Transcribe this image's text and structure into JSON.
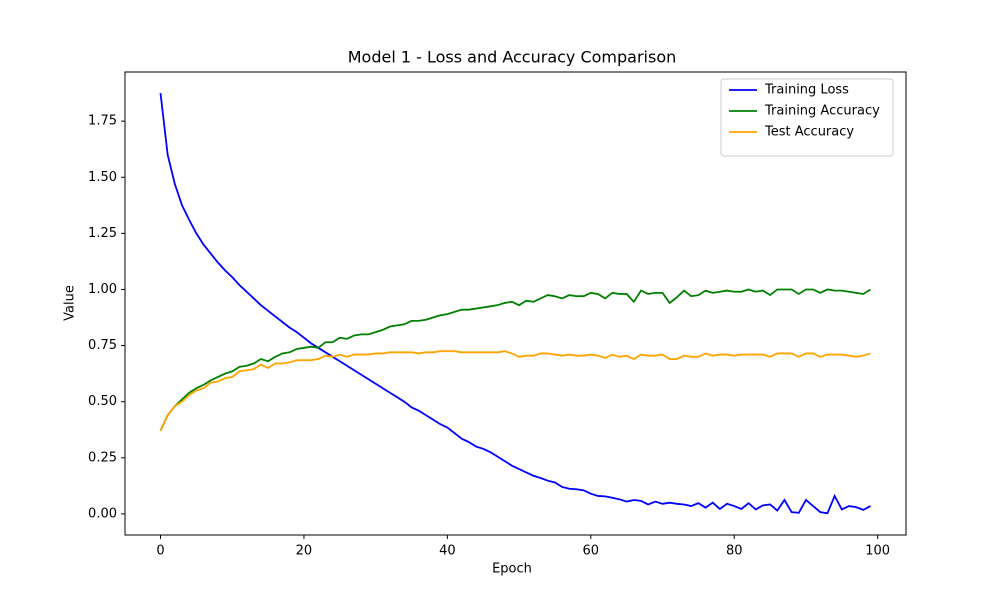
{
  "chart_data": {
    "type": "line",
    "title": "Model 1 - Loss and Accuracy Comparison",
    "x_label": "Epoch",
    "y_label": "Value",
    "x": [
      0,
      1,
      2,
      3,
      4,
      5,
      6,
      7,
      8,
      9,
      10,
      11,
      12,
      13,
      14,
      15,
      16,
      17,
      18,
      19,
      20,
      21,
      22,
      23,
      24,
      25,
      26,
      27,
      28,
      29,
      30,
      31,
      32,
      33,
      34,
      35,
      36,
      37,
      38,
      39,
      40,
      41,
      42,
      43,
      44,
      45,
      46,
      47,
      48,
      49,
      50,
      51,
      52,
      53,
      54,
      55,
      56,
      57,
      58,
      59,
      60,
      61,
      62,
      63,
      64,
      65,
      66,
      67,
      68,
      69,
      70,
      71,
      72,
      73,
      74,
      75,
      76,
      77,
      78,
      79,
      80,
      81,
      82,
      83,
      84,
      85,
      86,
      87,
      88,
      89,
      90,
      91,
      92,
      93,
      94,
      95,
      96,
      97,
      98,
      99
    ],
    "series": [
      {
        "name": "Training Loss",
        "color": "#0000ff",
        "values": [
          1.875,
          1.6,
          1.47,
          1.375,
          1.31,
          1.25,
          1.2,
          1.16,
          1.12,
          1.085,
          1.055,
          1.02,
          0.99,
          0.96,
          0.93,
          0.905,
          0.88,
          0.855,
          0.83,
          0.81,
          0.785,
          0.76,
          0.74,
          0.72,
          0.7,
          0.68,
          0.66,
          0.64,
          0.62,
          0.6,
          0.58,
          0.56,
          0.54,
          0.52,
          0.5,
          0.475,
          0.46,
          0.44,
          0.42,
          0.4,
          0.385,
          0.36,
          0.335,
          0.32,
          0.3,
          0.29,
          0.275,
          0.255,
          0.235,
          0.215,
          0.2,
          0.185,
          0.17,
          0.16,
          0.148,
          0.14,
          0.12,
          0.112,
          0.11,
          0.105,
          0.09,
          0.08,
          0.078,
          0.072,
          0.065,
          0.055,
          0.062,
          0.058,
          0.042,
          0.055,
          0.045,
          0.05,
          0.045,
          0.042,
          0.035,
          0.048,
          0.028,
          0.05,
          0.022,
          0.045,
          0.035,
          0.022,
          0.048,
          0.02,
          0.038,
          0.042,
          0.015,
          0.062,
          0.008,
          0.005,
          0.062,
          0.035,
          0.008,
          0.003,
          0.08,
          0.02,
          0.035,
          0.03,
          0.018,
          0.035
        ]
      },
      {
        "name": "Training Accuracy",
        "color": "#008000",
        "values": [
          0.37,
          0.44,
          0.48,
          0.51,
          0.54,
          0.56,
          0.575,
          0.595,
          0.61,
          0.625,
          0.635,
          0.655,
          0.66,
          0.67,
          0.69,
          0.68,
          0.7,
          0.715,
          0.72,
          0.735,
          0.74,
          0.745,
          0.74,
          0.765,
          0.765,
          0.785,
          0.78,
          0.795,
          0.8,
          0.8,
          0.81,
          0.82,
          0.835,
          0.84,
          0.845,
          0.86,
          0.86,
          0.865,
          0.875,
          0.885,
          0.89,
          0.9,
          0.91,
          0.91,
          0.915,
          0.92,
          0.925,
          0.93,
          0.94,
          0.945,
          0.93,
          0.95,
          0.945,
          0.96,
          0.975,
          0.97,
          0.96,
          0.975,
          0.97,
          0.97,
          0.985,
          0.98,
          0.96,
          0.985,
          0.98,
          0.98,
          0.945,
          0.995,
          0.98,
          0.985,
          0.985,
          0.94,
          0.965,
          0.995,
          0.97,
          0.975,
          0.995,
          0.985,
          0.99,
          0.995,
          0.99,
          0.99,
          1.0,
          0.99,
          0.995,
          0.975,
          1.0,
          1.0,
          1.0,
          0.98,
          1.0,
          1.0,
          0.985,
          1.0,
          0.995,
          0.995,
          0.99,
          0.985,
          0.98,
          1.0
        ]
      },
      {
        "name": "Test Accuracy",
        "color": "#ffa500",
        "values": [
          0.37,
          0.44,
          0.48,
          0.5,
          0.53,
          0.55,
          0.56,
          0.585,
          0.59,
          0.605,
          0.61,
          0.635,
          0.64,
          0.645,
          0.665,
          0.65,
          0.67,
          0.67,
          0.675,
          0.685,
          0.685,
          0.685,
          0.69,
          0.705,
          0.7,
          0.71,
          0.7,
          0.71,
          0.71,
          0.71,
          0.715,
          0.715,
          0.72,
          0.72,
          0.72,
          0.72,
          0.715,
          0.72,
          0.72,
          0.725,
          0.725,
          0.725,
          0.72,
          0.72,
          0.72,
          0.72,
          0.72,
          0.72,
          0.725,
          0.715,
          0.7,
          0.705,
          0.705,
          0.715,
          0.715,
          0.71,
          0.705,
          0.71,
          0.705,
          0.705,
          0.71,
          0.705,
          0.695,
          0.71,
          0.7,
          0.705,
          0.69,
          0.71,
          0.705,
          0.705,
          0.71,
          0.69,
          0.69,
          0.705,
          0.7,
          0.7,
          0.715,
          0.705,
          0.71,
          0.71,
          0.705,
          0.71,
          0.71,
          0.71,
          0.71,
          0.7,
          0.715,
          0.715,
          0.715,
          0.7,
          0.715,
          0.715,
          0.7,
          0.71,
          0.71,
          0.71,
          0.705,
          0.7,
          0.705,
          0.715
        ]
      }
    ],
    "xlim": [
      -4.95,
      103.95
    ],
    "xticks": [
      0,
      20,
      40,
      60,
      80,
      100
    ],
    "ylim": [
      -0.094,
      1.969
    ],
    "yticks": [
      {
        "value": 0,
        "label": "0.00"
      },
      0.25,
      {
        "value": 0.5,
        "label": "0.50"
      },
      0.75,
      {
        "value": 1,
        "label": "1.00"
      },
      1.25,
      {
        "value": 1.5,
        "label": "1.50"
      },
      1.75
    ],
    "grid": false,
    "legend": "upper right"
  }
}
